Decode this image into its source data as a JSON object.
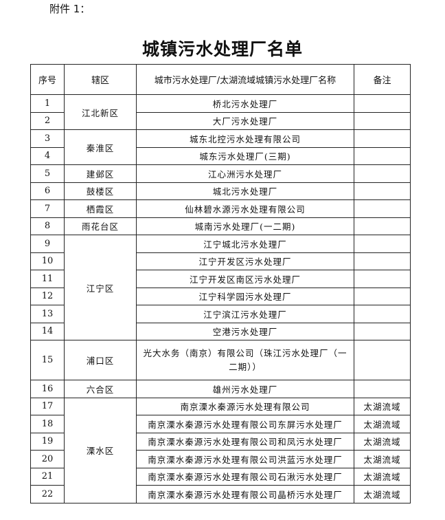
{
  "attachment_label": "附件 1：",
  "title": "城镇污水处理厂名单",
  "headers": [
    "序号",
    "辖区",
    "城市污水处理厂/太湖流域城镇污水处理厂名称",
    "备注"
  ],
  "rows": [
    {
      "no": "1",
      "district": "江北新区",
      "name": "桥北污水处理厂",
      "note": ""
    },
    {
      "no": "2",
      "district": "",
      "name": "大厂污水处理厂",
      "note": ""
    },
    {
      "no": "3",
      "district": "秦淮区",
      "name": "城东北控污水处理有限公司",
      "note": ""
    },
    {
      "no": "4",
      "district": "",
      "name": "城东污水处理厂(三期)",
      "note": ""
    },
    {
      "no": "5",
      "district": "建邺区",
      "name": "江心洲污水处理厂",
      "note": ""
    },
    {
      "no": "6",
      "district": "鼓楼区",
      "name": "城北污水处理厂",
      "note": ""
    },
    {
      "no": "7",
      "district": "栖霞区",
      "name": "仙林碧水源污水处理有限公司",
      "note": ""
    },
    {
      "no": "8",
      "district": "雨花台区",
      "name": "城南污水处理厂(一二期)",
      "note": ""
    },
    {
      "no": "9",
      "district": "江宁区",
      "name": "江宁城北污水处理厂",
      "note": ""
    },
    {
      "no": "10",
      "district": "",
      "name": "江宁开发区污水处理厂",
      "note": ""
    },
    {
      "no": "11",
      "district": "",
      "name": "江宁开发区南区污水处理厂",
      "note": ""
    },
    {
      "no": "12",
      "district": "",
      "name": "江宁科学园污水处理厂",
      "note": ""
    },
    {
      "no": "13",
      "district": "",
      "name": "江宁滨江污水处理厂",
      "note": ""
    },
    {
      "no": "14",
      "district": "",
      "name": "空港污水处理厂",
      "note": ""
    },
    {
      "no": "15",
      "district": "浦口区",
      "name": "光大水务（南京）有限公司（珠江污水处理厂（一二期））",
      "note": ""
    },
    {
      "no": "16",
      "district": "六合区",
      "name": "雄州污水处理厂",
      "note": ""
    },
    {
      "no": "17",
      "district": "溧水区",
      "name": "南京溧水秦源污水处理有限公司",
      "note": "太湖流域"
    },
    {
      "no": "18",
      "district": "",
      "name": "南京溧水秦源污水处理有限公司东屏污水处理厂",
      "note": "太湖流域"
    },
    {
      "no": "19",
      "district": "",
      "name": "南京溧水秦源污水处理有限公司和凤污水处理厂",
      "note": "太湖流域"
    },
    {
      "no": "20",
      "district": "",
      "name": "南京溧水秦源污水处理有限公司洪蓝污水处理厂",
      "note": "太湖流域"
    },
    {
      "no": "21",
      "district": "",
      "name": "南京溧水秦源污水处理有限公司石湫污水处理厂",
      "note": "太湖流域"
    },
    {
      "no": "22",
      "district": "",
      "name": "南京溧水秦源污水处理有限公司晶桥污水处理厂",
      "note": "太湖流域"
    }
  ]
}
